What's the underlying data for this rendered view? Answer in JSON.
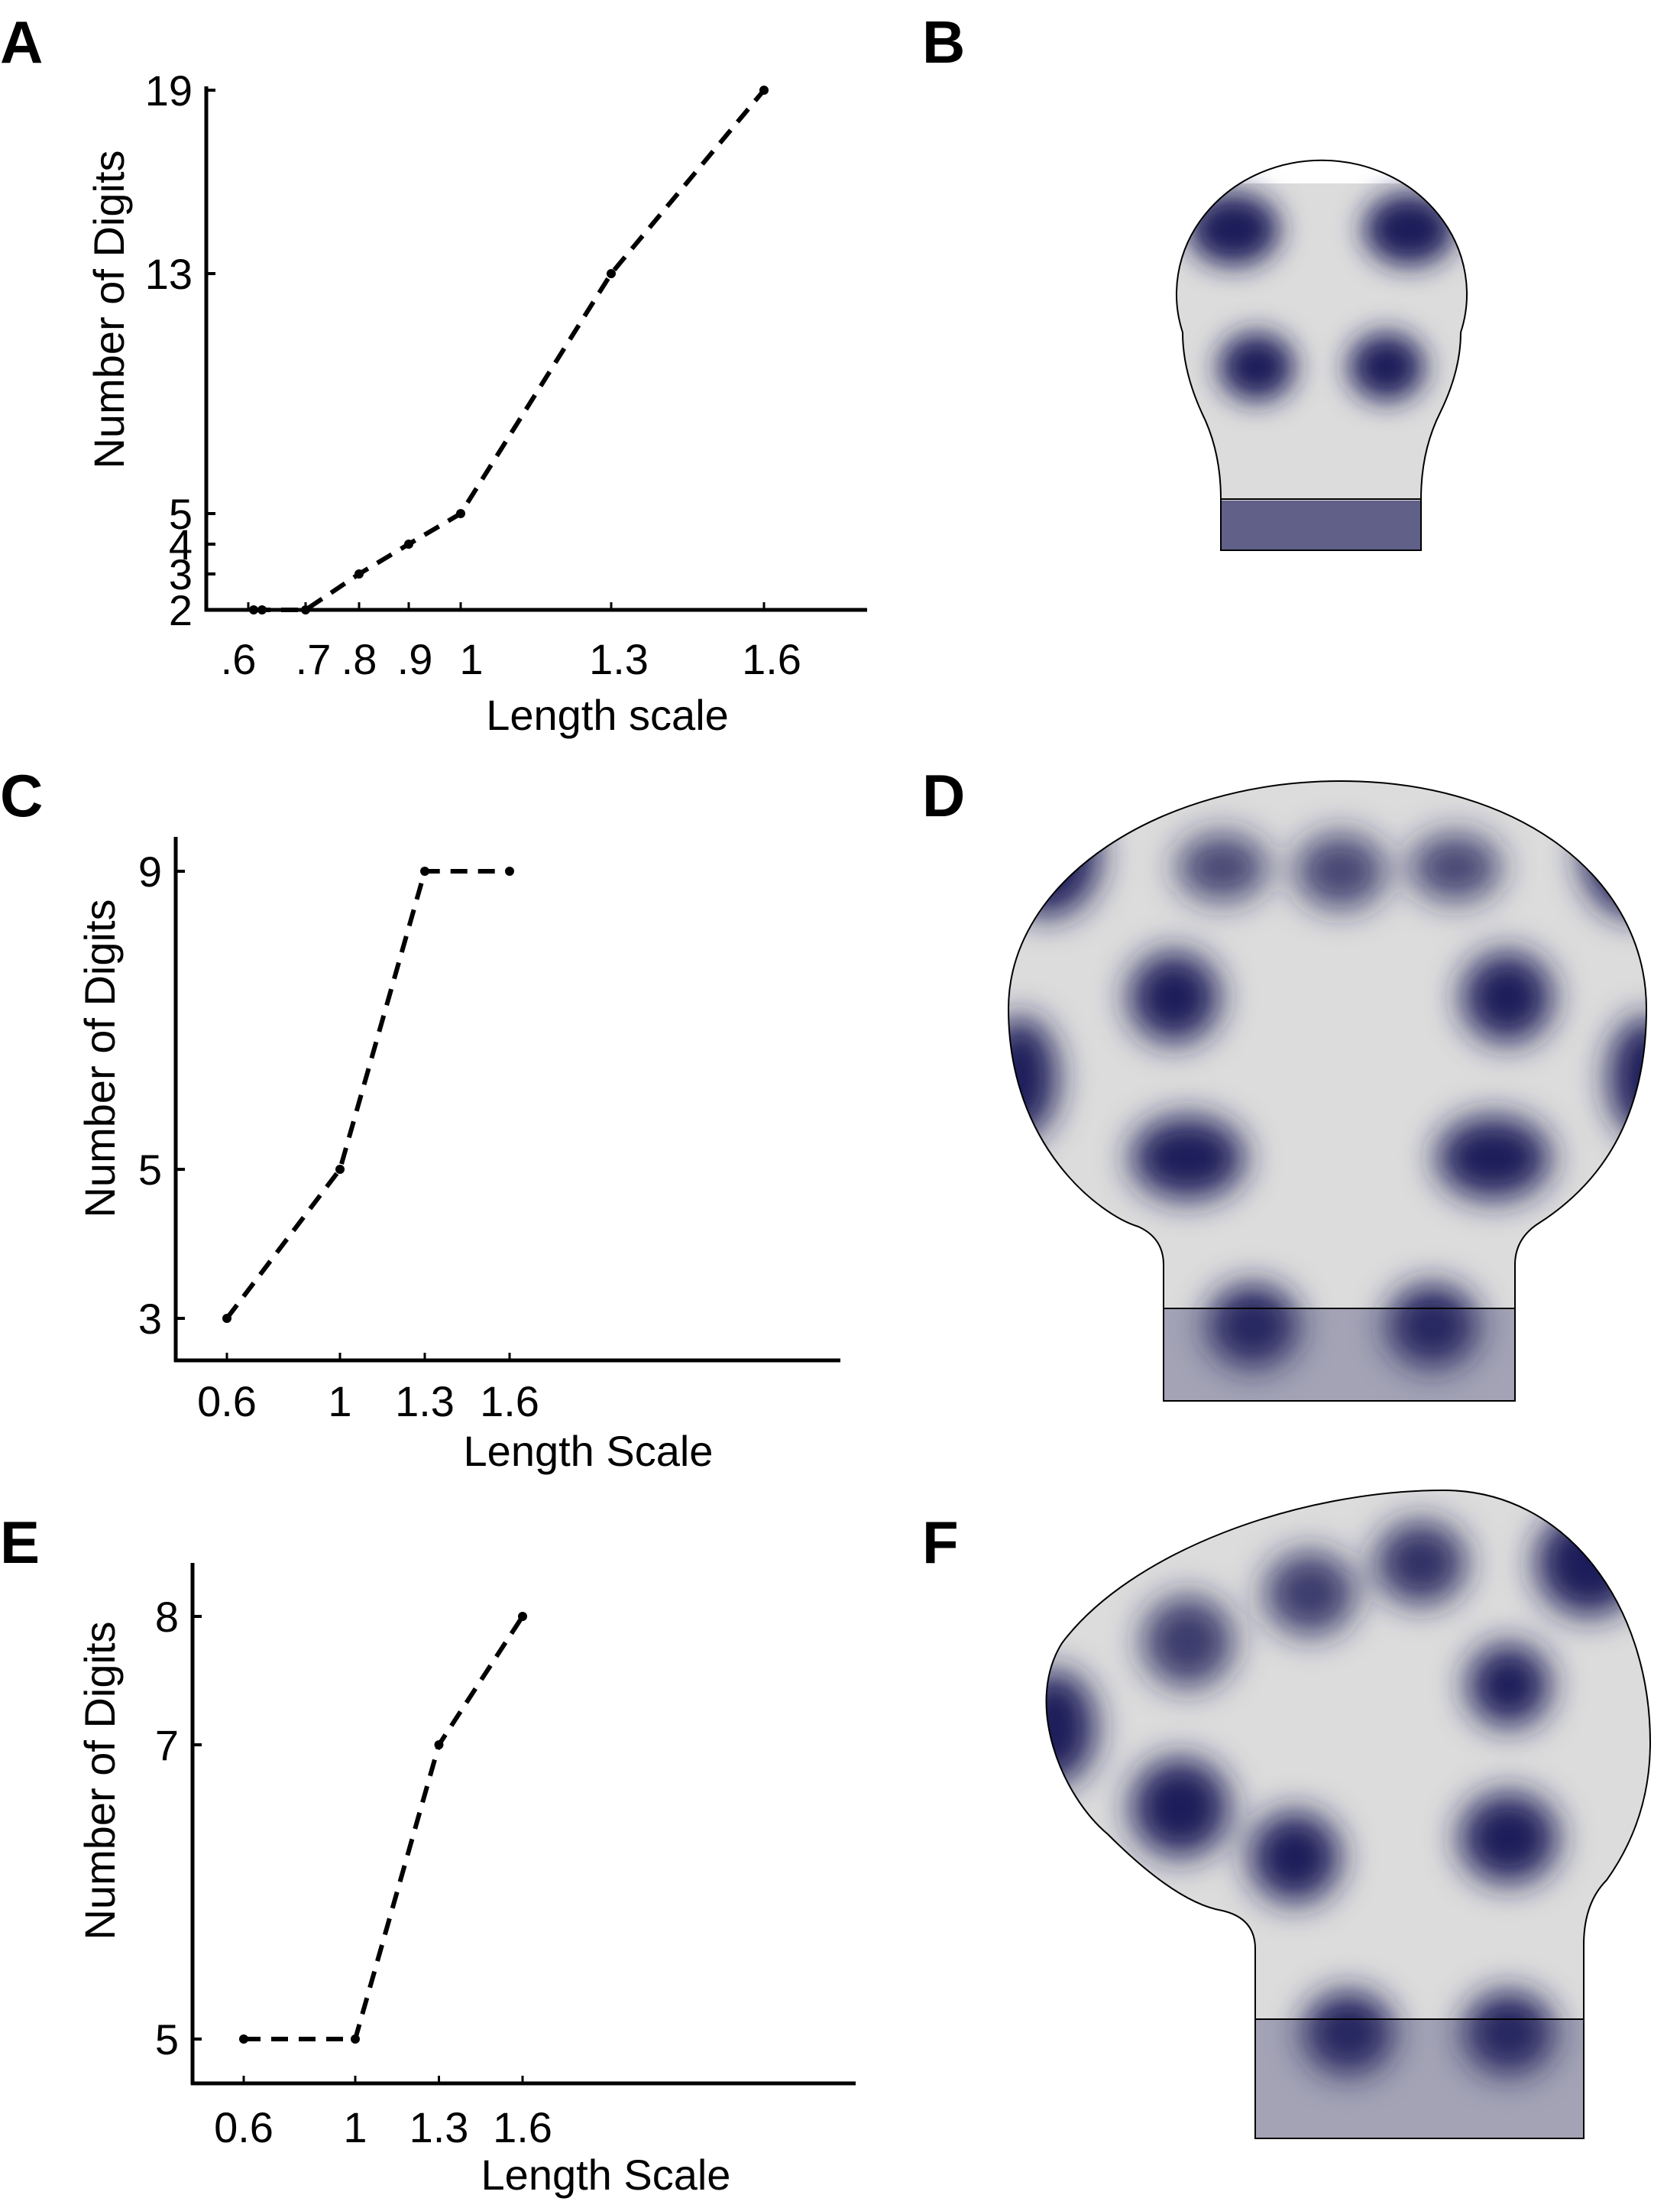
{
  "panel_labels": [
    "A",
    "B",
    "C",
    "D",
    "E",
    "F"
  ],
  "chart_data": [
    {
      "panel": "A",
      "type": "line",
      "xlabel": "Length scale",
      "ylabel": "Number of Digits",
      "x": [
        0.62,
        0.65,
        0.7,
        0.8,
        0.9,
        1.0,
        1.3,
        1.6
      ],
      "y": [
        2,
        2,
        2,
        3,
        4,
        5,
        13,
        19
      ],
      "xticks": [
        0.6,
        0.7,
        0.8,
        0.9,
        1.0,
        1.3,
        1.6
      ],
      "xtick_labels": [
        ".6",
        ".7",
        ".8",
        ".9",
        "1",
        "1.3",
        "1.6"
      ],
      "yticks": [
        2,
        3,
        4,
        5,
        13,
        19
      ],
      "ytick_labels": [
        "2",
        "3",
        "4",
        "5",
        "13",
        "19"
      ],
      "xlim": [
        0.55,
        1.8
      ],
      "ylim": [
        2,
        19
      ],
      "line_style": "dashed",
      "marker": "dot"
    },
    {
      "panel": "C",
      "type": "line",
      "xlabel": "Length Scale",
      "ylabel": "Number of Digits",
      "x": [
        0.6,
        1.0,
        1.3,
        1.6
      ],
      "y": [
        3,
        5,
        9,
        9
      ],
      "xticks": [
        0.6,
        1.0,
        1.3,
        1.6
      ],
      "xtick_labels": [
        "0.6",
        "1",
        "1.3",
        "1.6"
      ],
      "yticks": [
        3,
        5,
        9
      ],
      "ytick_labels": [
        "3",
        "5",
        "9"
      ],
      "xlim": [
        0.5,
        1.8
      ],
      "ylim": [
        2.5,
        9.3
      ],
      "line_style": "dashed",
      "marker": "dot"
    },
    {
      "panel": "E",
      "type": "line",
      "xlabel": "Length Scale",
      "ylabel": "Number of Digits",
      "x": [
        0.6,
        1.0,
        1.3,
        1.6
      ],
      "y": [
        5,
        5,
        7,
        8
      ],
      "xticks": [
        0.6,
        1.0,
        1.3,
        1.6
      ],
      "xtick_labels": [
        "0.6",
        "1",
        "1.3",
        "1.6"
      ],
      "yticks": [
        5,
        7,
        8
      ],
      "ytick_labels": [
        "5",
        "7",
        "8"
      ],
      "xlim": [
        0.5,
        1.8
      ],
      "ylim": [
        4.8,
        8.3
      ],
      "line_style": "dashed",
      "marker": "dot"
    }
  ],
  "colors": {
    "spot": "#1e1e5a",
    "background_tissue": "#dcdcdc",
    "outline": "#000000"
  }
}
